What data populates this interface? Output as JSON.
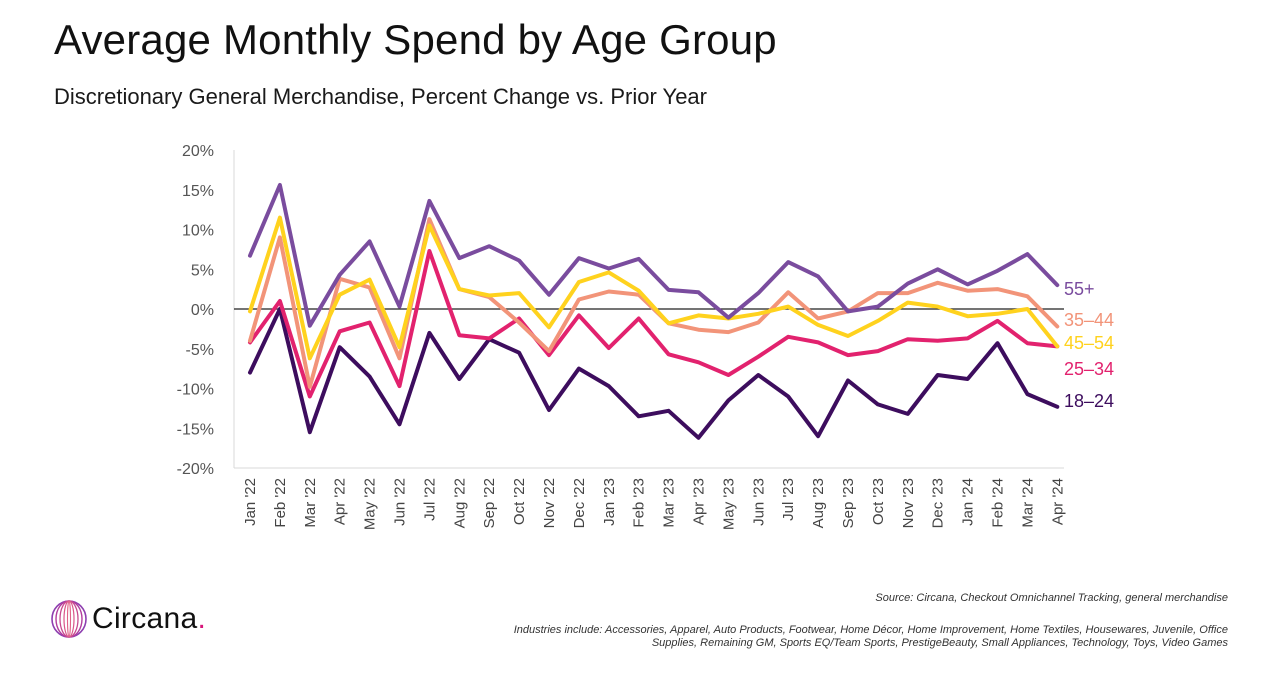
{
  "title": "Average Monthly Spend by Age Group",
  "subtitle": "Discretionary General Merchandise, Percent Change vs. Prior Year",
  "brand": {
    "name": "Circana",
    "dot": ".",
    "logo_icon": "circana-logo-icon"
  },
  "source": "Source: Circana, Checkout Omnichannel Tracking, general merchandise",
  "industries": "Industries include: Accessories, Apparel, Auto Products, Footwear, Home Décor, Home Improvement, Home Textiles, Housewares, Juvenile, Office Supplies, Remaining GM, Sports EQ/Team Sports, PrestigeBeauty, Small Appliances, Technology, Toys, Video Games",
  "chart_data": {
    "type": "line",
    "title": "Average Monthly Spend by Age Group",
    "subtitle": "Discretionary General Merchandise, Percent Change vs. Prior Year",
    "xlabel": "",
    "ylabel": "",
    "ylim": [
      -20,
      20
    ],
    "yticks": [
      20,
      15,
      10,
      5,
      0,
      -5,
      -10,
      -15,
      -20
    ],
    "ytick_labels": [
      "20%",
      "15%",
      "10%",
      "5%",
      "0%",
      "-5%",
      "-10%",
      "-15%",
      "-20%"
    ],
    "grid": "horizontal-none-zero-line",
    "categories": [
      "Jan '22",
      "Feb '22",
      "Mar '22",
      "Apr '22",
      "May '22",
      "Jun '22",
      "Jul '22",
      "Aug '22",
      "Sep '22",
      "Oct '22",
      "Nov '22",
      "Dec '22",
      "Jan '23",
      "Feb '23",
      "Mar '23",
      "Apr '23",
      "May '23",
      "Jun '23",
      "Jul '23",
      "Aug '23",
      "Sep '23",
      "Oct '23",
      "Nov '23",
      "Dec '23",
      "Jan '24",
      "Feb '24",
      "Mar '24",
      "Apr '24"
    ],
    "series": [
      {
        "name": "18–24",
        "color": "#3d0d5e",
        "values": [
          -8,
          0,
          -15.5,
          -4.8,
          -8.5,
          -14.5,
          -3,
          -8.8,
          -3.8,
          -5.5,
          -12.7,
          -7.5,
          -9.7,
          -13.5,
          -12.8,
          -16.2,
          -11.5,
          -8.3,
          -11,
          -16,
          -9,
          -12,
          -13.2,
          -8.3,
          -8.8,
          -4.3,
          -10.7,
          -12.3
        ]
      },
      {
        "name": "25–34",
        "color": "#e2226e",
        "values": [
          -4.2,
          1,
          -11,
          -2.8,
          -1.7,
          -9.7,
          7.3,
          -3.3,
          -3.7,
          -1.2,
          -5.8,
          -0.8,
          -4.9,
          -1.2,
          -5.7,
          -6.7,
          -8.3,
          -6,
          -3.5,
          -4.2,
          -5.8,
          -5.3,
          -3.8,
          -4,
          -3.7,
          -1.5,
          -4.3,
          -4.7
        ]
      },
      {
        "name": "35–44",
        "color": "#f29479",
        "values": [
          -4,
          9,
          -9.8,
          3.8,
          2.7,
          -6.2,
          11.3,
          2.5,
          1.5,
          -1.7,
          -5.3,
          1.2,
          2.2,
          1.8,
          -1.8,
          -2.6,
          -2.9,
          -1.7,
          2.1,
          -1.2,
          -0.3,
          2,
          2,
          3.3,
          2.3,
          2.5,
          1.6,
          -2.2
        ]
      },
      {
        "name": "45–54",
        "color": "#ffd21e",
        "values": [
          -0.3,
          11.5,
          -6.2,
          1.8,
          3.7,
          -4.8,
          10.5,
          2.5,
          1.7,
          2,
          -2.3,
          3.4,
          4.6,
          2.3,
          -1.8,
          -0.8,
          -1.2,
          -0.6,
          0.3,
          -2,
          -3.4,
          -1.5,
          0.8,
          0.3,
          -0.9,
          -0.6,
          0,
          -4.7
        ]
      },
      {
        "name": "55+",
        "color": "#7a4c9e",
        "values": [
          6.7,
          15.6,
          -2.1,
          4.3,
          8.5,
          0.3,
          13.6,
          6.4,
          7.9,
          6.1,
          1.8,
          6.4,
          5.1,
          6.3,
          2.4,
          2.1,
          -1.1,
          2,
          5.9,
          4.1,
          -0.3,
          0.3,
          3.2,
          5,
          3.1,
          4.8,
          6.9,
          3
        ]
      }
    ]
  }
}
